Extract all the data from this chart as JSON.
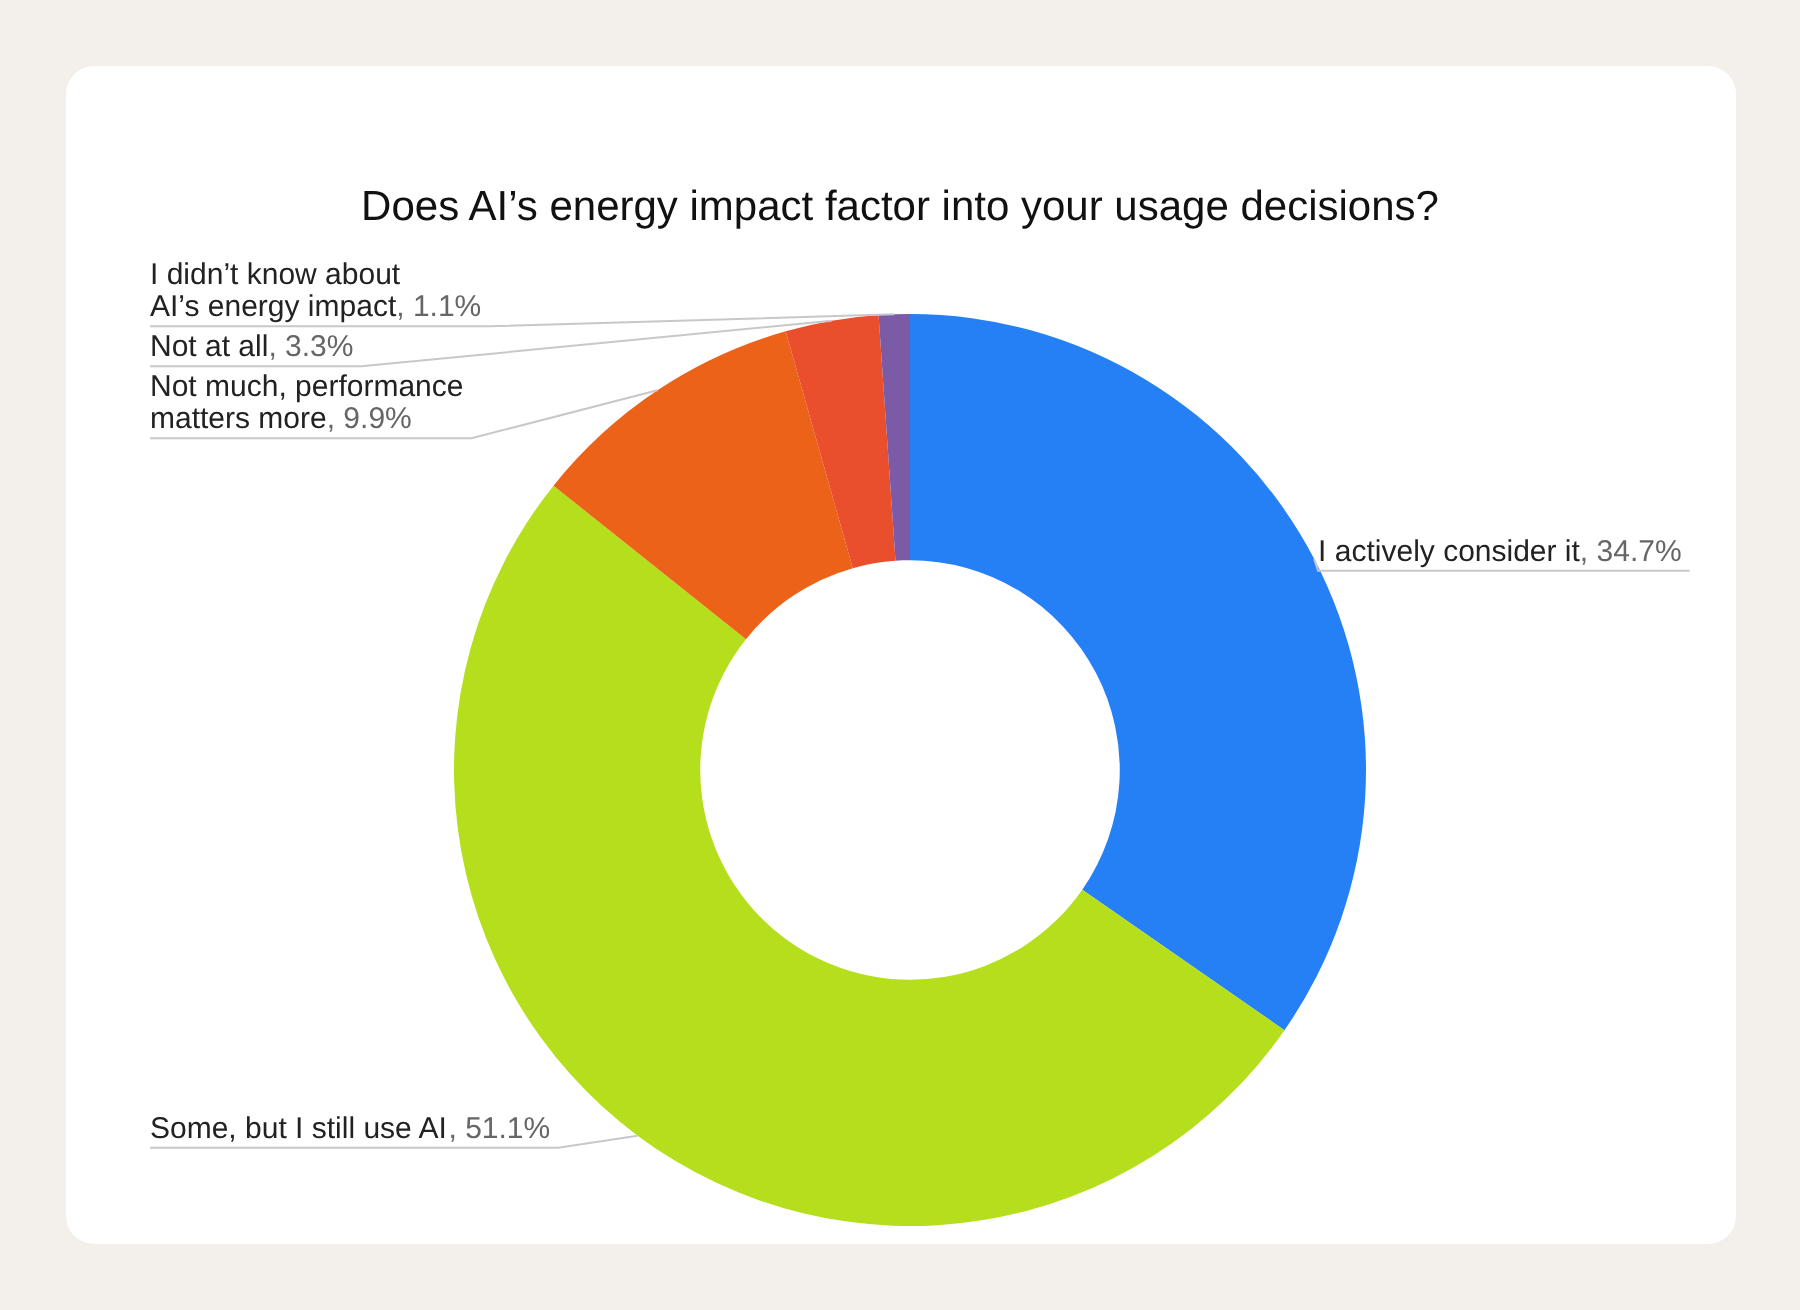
{
  "chart_data": {
    "type": "donut",
    "title": "Does AI’s energy impact factor into your usage decisions?",
    "categories": [
      "I actively consider it",
      "Some, but I still use AI",
      "Not much, performance matters more",
      "Not at all",
      "I didn’t know about\nAI’s energy impact"
    ],
    "values": [
      34.7,
      51.1,
      9.9,
      3.3,
      1.1
    ],
    "value_labels": [
      ", 34.7%",
      ", 51.1%",
      ", 9.9%",
      ", 3.3%",
      ", 1.1%"
    ],
    "colors": [
      "#2680f5",
      "#b5df1c",
      "#ec6219",
      "#ea4f2d",
      "#7b5aa6"
    ],
    "legend": false
  }
}
